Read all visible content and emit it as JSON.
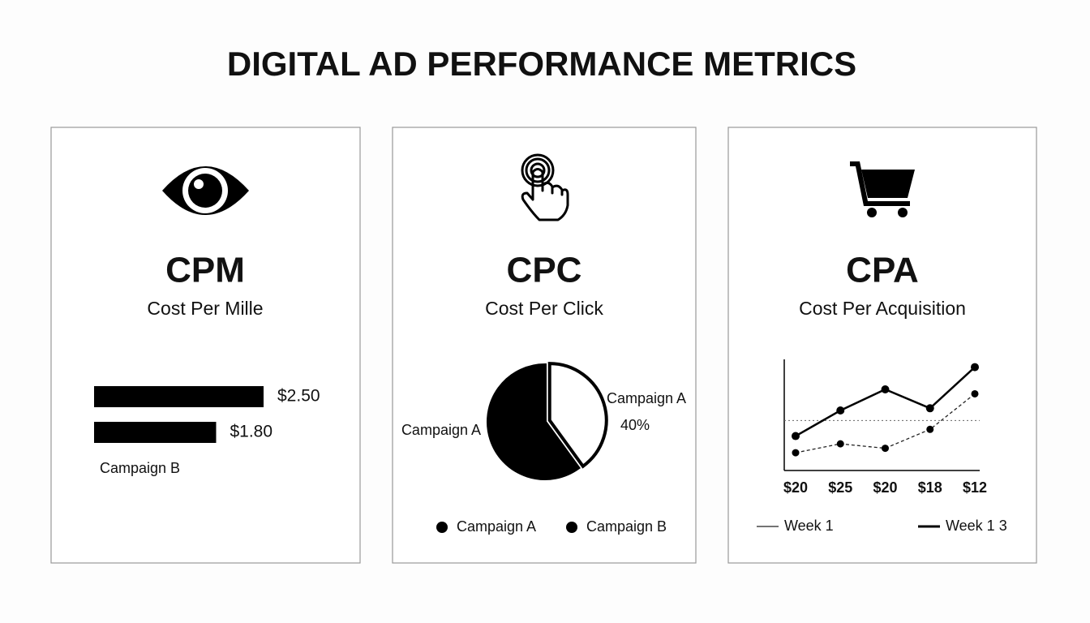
{
  "title": "DIGITAL AD PERFORMANCE METRICS",
  "chart_data": [
    {
      "type": "hbar",
      "title": "CPM",
      "subtitle": "Cost Per Mille",
      "categories": [
        null,
        "Campaign B"
      ],
      "values": [
        2.5,
        1.8
      ],
      "value_labels": [
        "$2.50",
        "$1.80"
      ],
      "color": "#000000"
    },
    {
      "type": "pie",
      "title": "CPC",
      "subtitle": "Cost Per Click",
      "labels": [
        "Campaign A",
        "Campaign A"
      ],
      "values": [
        40,
        60
      ],
      "value_labels": [
        "40%",
        null
      ],
      "colors": [
        "#ffffff",
        "#000000"
      ],
      "legend": [
        "Campaign A",
        "Campaign B"
      ]
    },
    {
      "type": "line",
      "title": "CPA",
      "subtitle": "Cost Per Acquisition",
      "categories": [
        "$20",
        "$25",
        "$20",
        "$18",
        "$12"
      ],
      "ylim": [
        0,
        100
      ],
      "reference": 45,
      "series": [
        {
          "name": "Week 1",
          "color": "#222222",
          "dashed": true,
          "values": [
            16,
            24,
            20,
            37,
            69
          ]
        },
        {
          "name": "Week 1 3",
          "color": "#000000",
          "dashed": false,
          "values": [
            31,
            54,
            73,
            56,
            93
          ]
        }
      ]
    }
  ]
}
